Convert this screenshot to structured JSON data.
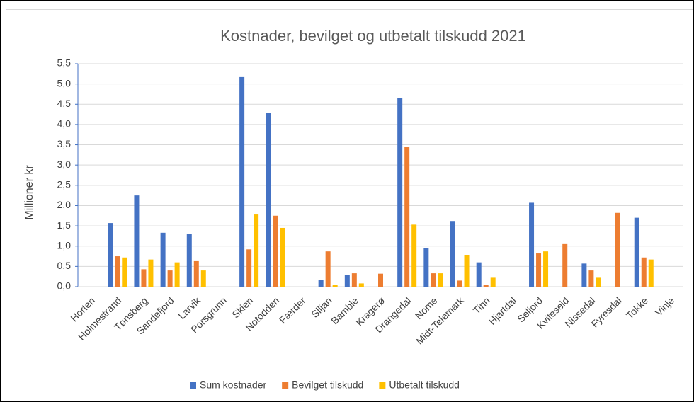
{
  "chart_data": {
    "type": "bar",
    "title": "Kostnader,  bevilget og utbetalt tilskudd 2021",
    "y_label": "Millioner kr",
    "categories": [
      "Horten",
      "Holmestrand",
      "Tønsberg",
      "Sandefjord",
      "Larvik",
      "Porsgrunn",
      "Skien",
      "Notodden",
      "Færder",
      "Siljan",
      "Bamble",
      "Kragerø",
      "Drangedal",
      "Nome",
      "Midt-Telemark",
      "Tinn",
      "Hjartdal",
      "Seljord",
      "Kviteseid",
      "Nissedal",
      "Fyresdal",
      "Tokke",
      "Vinje"
    ],
    "series": [
      {
        "name": "Sum kostnader",
        "color": "#4472c4",
        "values": [
          0,
          1.57,
          2.25,
          1.33,
          1.3,
          0,
          5.17,
          4.28,
          0,
          0.17,
          0.28,
          0,
          4.65,
          0.95,
          1.62,
          0.6,
          0,
          2.07,
          0,
          0.57,
          0,
          1.7,
          0
        ]
      },
      {
        "name": "Bevilget tilskudd",
        "color": "#ed7d31",
        "values": [
          0,
          0.75,
          0.43,
          0.4,
          0.63,
          0,
          0.92,
          1.75,
          0,
          0.87,
          0.33,
          0.32,
          3.45,
          0.33,
          0.15,
          0.05,
          0,
          0.82,
          1.05,
          0.4,
          1.82,
          0.72,
          0
        ]
      },
      {
        "name": "Utbetalt tilskudd",
        "color": "#ffc000",
        "values": [
          0,
          0.72,
          0.67,
          0.6,
          0.4,
          0,
          1.78,
          1.45,
          0,
          0.05,
          0.08,
          0,
          1.53,
          0.33,
          0.77,
          0.22,
          0,
          0.87,
          0,
          0.22,
          0,
          0.67,
          0
        ]
      }
    ],
    "ylim": [
      0,
      5.5
    ],
    "yticks": [
      {
        "value": 0,
        "label": "0,0"
      },
      {
        "value": 0.5,
        "label": "0,5"
      },
      {
        "value": 1,
        "label": "1,0"
      },
      {
        "value": 1.5,
        "label": "1,5"
      },
      {
        "value": 2,
        "label": "2,0"
      },
      {
        "value": 2.5,
        "label": "2,5"
      },
      {
        "value": 3,
        "label": "3,0"
      },
      {
        "value": 3.5,
        "label": "3,5"
      },
      {
        "value": 4,
        "label": "4,0"
      },
      {
        "value": 4.5,
        "label": "4,5"
      },
      {
        "value": 5,
        "label": "5,0"
      },
      {
        "value": 5.5,
        "label": "5,5"
      }
    ],
    "grid": true,
    "legend": "bottom"
  }
}
